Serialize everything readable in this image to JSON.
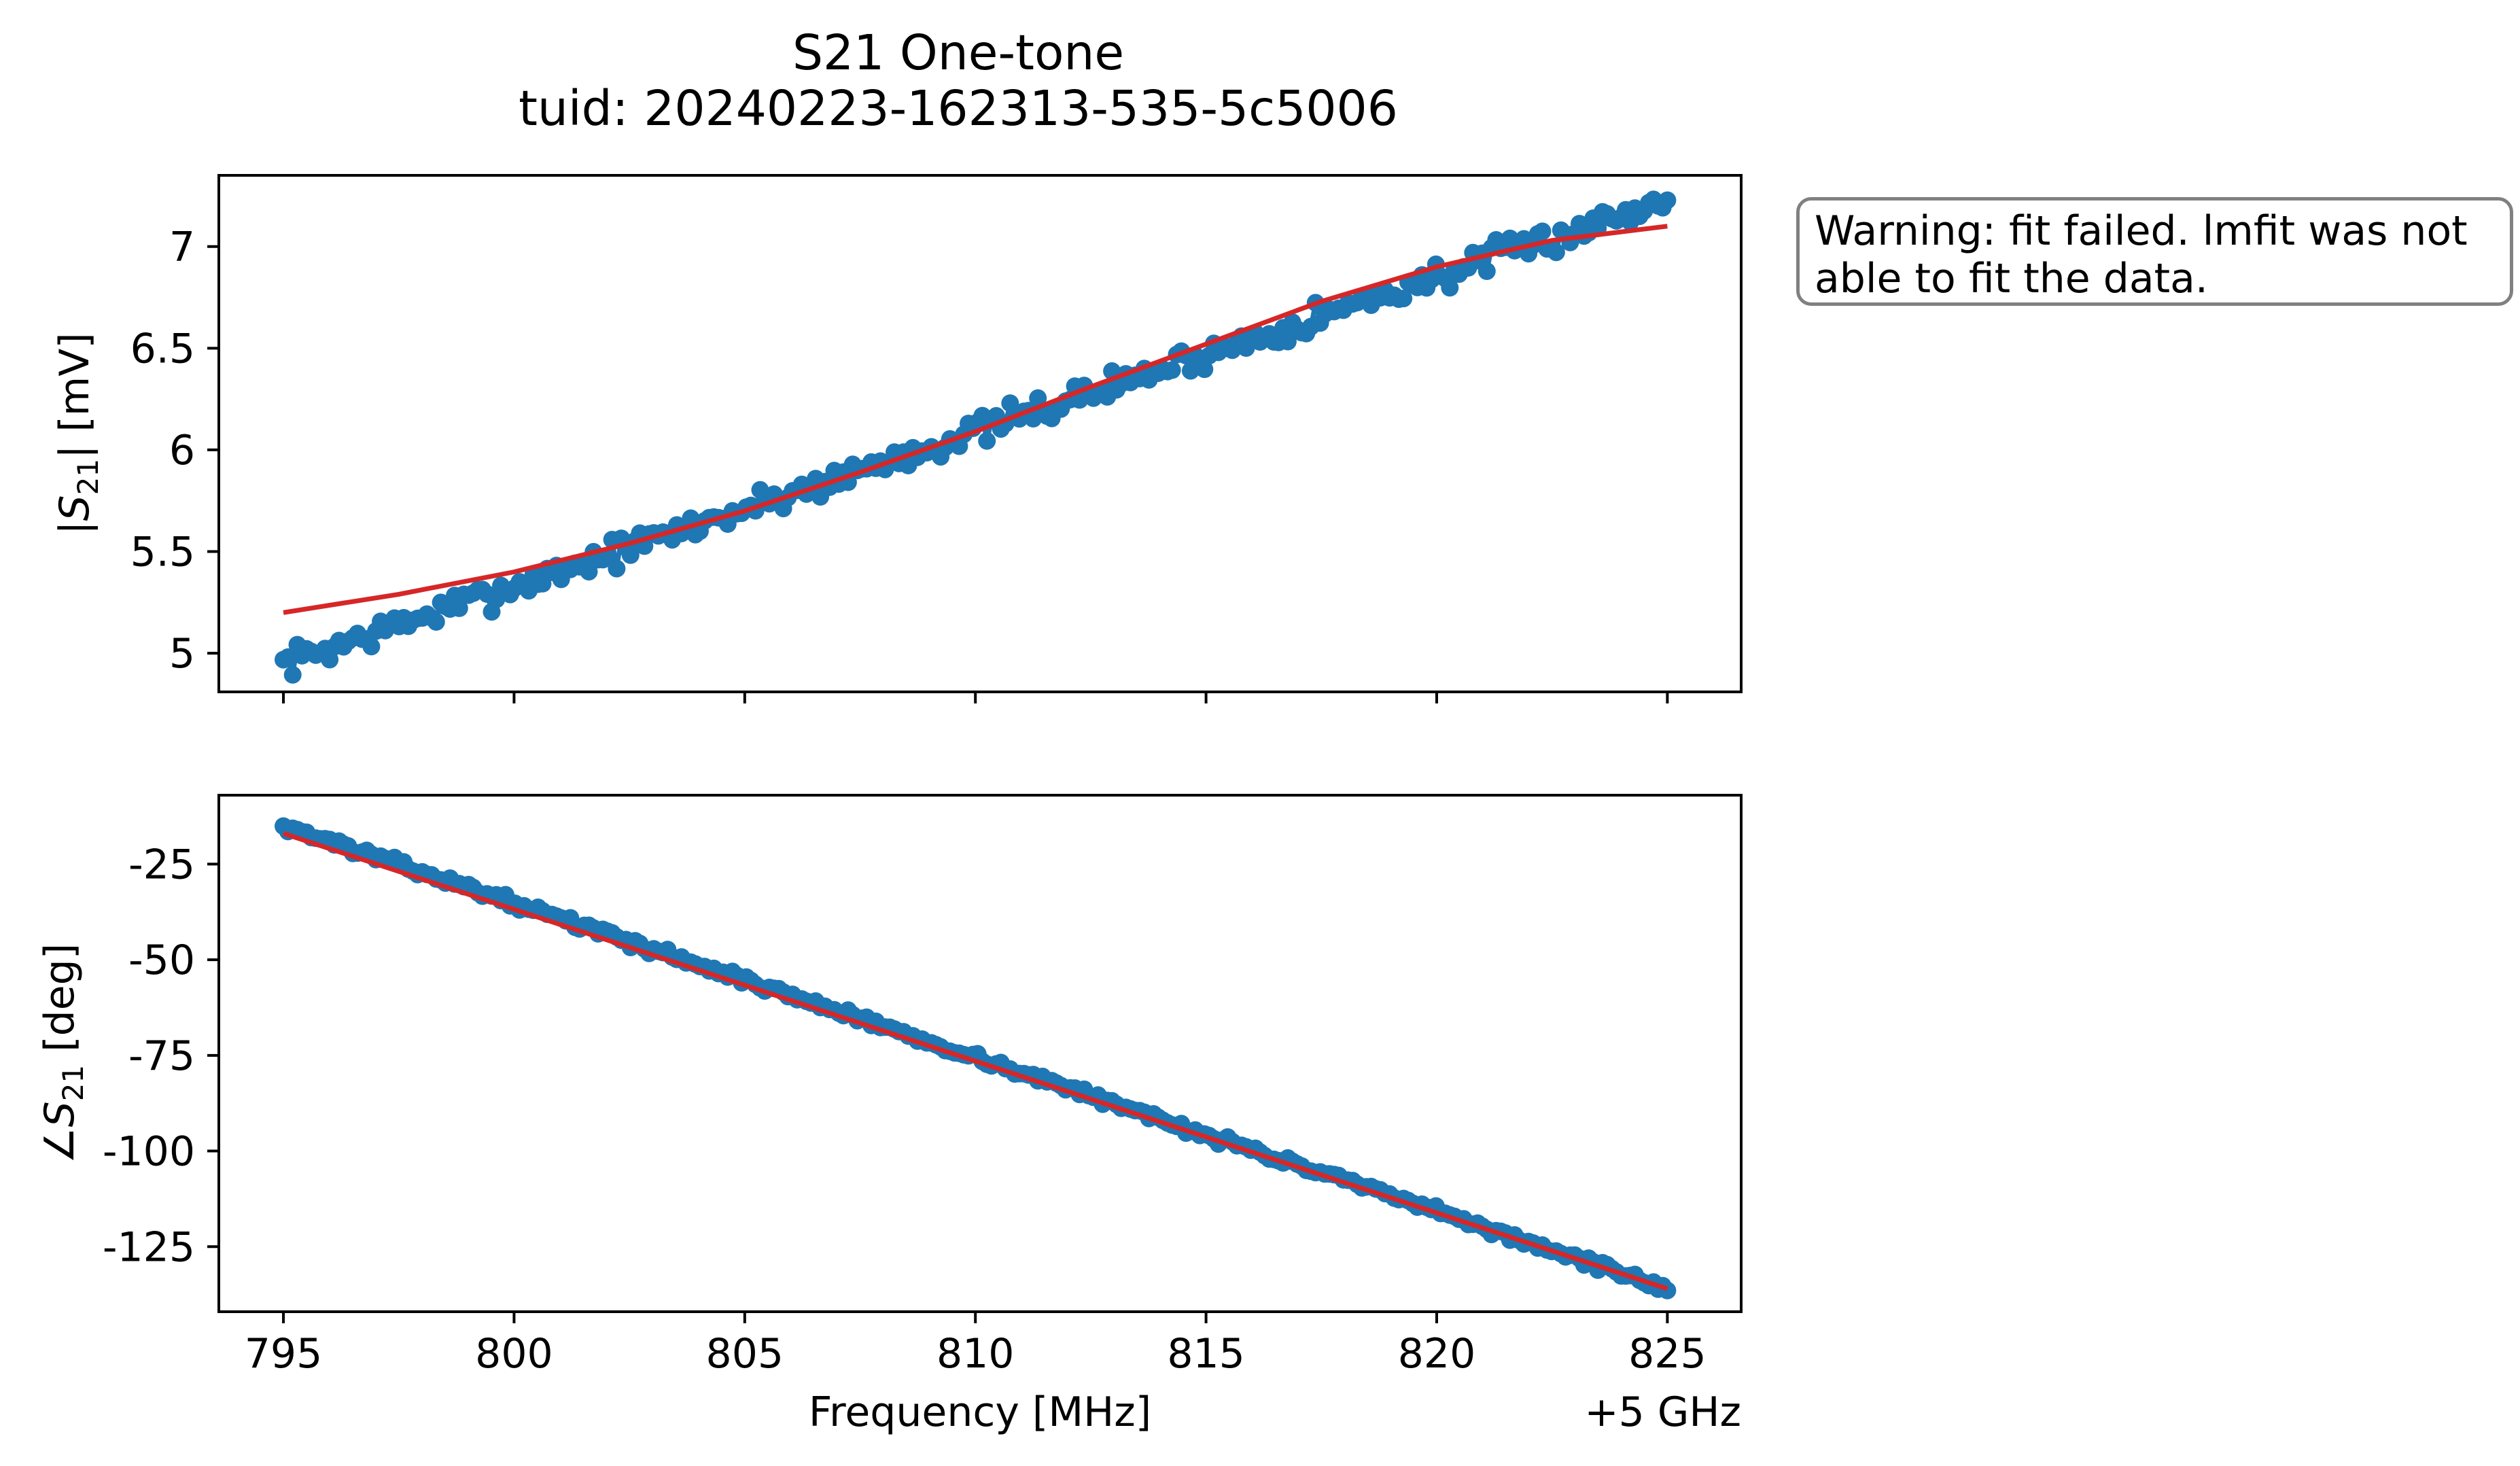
{
  "figure": {
    "title": "S21 One-tone",
    "subtitle": "tuid: 20240223-162313-535-5c5006",
    "warning_line1": "Warning: fit failed. lmfit was not",
    "warning_line2": "able to fit the data."
  },
  "colors": {
    "data": "#1f77b4",
    "fit": "#d62728",
    "axes": "#000000",
    "warning_border": "#808080"
  },
  "chart_data": [
    {
      "type": "line",
      "name": "magnitude",
      "title": "S21 One-tone",
      "xlabel": "Frequency [MHz]",
      "x_offset_label": "+5 GHz",
      "ylabel": "|S21| [mV]",
      "ylabel_main": "|S",
      "ylabel_sub": "21",
      "ylabel_unit": "| [mV]",
      "xlim": [
        793.6,
        826.6
      ],
      "ylim": [
        4.81,
        7.35
      ],
      "xticks": [
        795,
        800,
        805,
        810,
        815,
        820,
        825
      ],
      "xtick_labels": [
        "795",
        "800",
        "805",
        "810",
        "815",
        "820",
        "825"
      ],
      "yticks": [
        5,
        5.5,
        6,
        6.5,
        7
      ],
      "ytick_labels": [
        "5",
        "5.5",
        "6",
        "6.5",
        "7"
      ],
      "series": [
        {
          "name": "data",
          "style": "line-markers",
          "x_start": 795,
          "x_end": 825,
          "n": 300,
          "start": 4.95,
          "end": 7.23,
          "shape": [
            [
              795,
              0
            ],
            [
              800,
              0
            ],
            [
              805,
              0
            ],
            [
              810,
              0
            ],
            [
              815,
              0
            ],
            [
              820,
              0
            ],
            [
              825,
              0
            ]
          ],
          "noise_amplitude": 0.05,
          "seed": 7
        },
        {
          "name": "fit",
          "style": "line",
          "x": [
            795,
            797.5,
            800,
            802.5,
            805,
            807.5,
            810,
            812.5,
            815,
            817.5,
            820,
            822.5,
            825
          ],
          "y": [
            5.2,
            5.29,
            5.4,
            5.54,
            5.7,
            5.89,
            6.09,
            6.31,
            6.52,
            6.73,
            6.9,
            7.03,
            7.1
          ]
        }
      ]
    },
    {
      "type": "line",
      "name": "phase",
      "xlabel": "Frequency [MHz]",
      "x_offset_label": "+5 GHz",
      "ylabel": "∠S21 [deg]",
      "ylabel_main": "∠S",
      "ylabel_sub": "21",
      "ylabel_unit": " [deg]",
      "xlim": [
        793.6,
        826.6
      ],
      "ylim": [
        -142,
        -7
      ],
      "xticks": [
        795,
        800,
        805,
        810,
        815,
        820,
        825
      ],
      "xtick_labels": [
        "795",
        "800",
        "805",
        "810",
        "815",
        "820",
        "825"
      ],
      "yticks": [
        -25,
        -50,
        -75,
        -100,
        -125
      ],
      "ytick_labels": [
        "-25",
        "-50",
        "-75",
        "-100",
        "-125"
      ],
      "series": [
        {
          "name": "data",
          "style": "line-markers",
          "x_start": 795,
          "x_end": 825,
          "n": 300,
          "start": -15,
          "end": -136,
          "shape": [
            [
              795,
              0
            ],
            [
              825,
              0
            ]
          ],
          "noise_amplitude": 0.8,
          "seed": 13
        },
        {
          "name": "fit",
          "style": "line",
          "x": [
            795,
            825
          ],
          "y": [
            -17,
            -136
          ]
        }
      ]
    }
  ]
}
